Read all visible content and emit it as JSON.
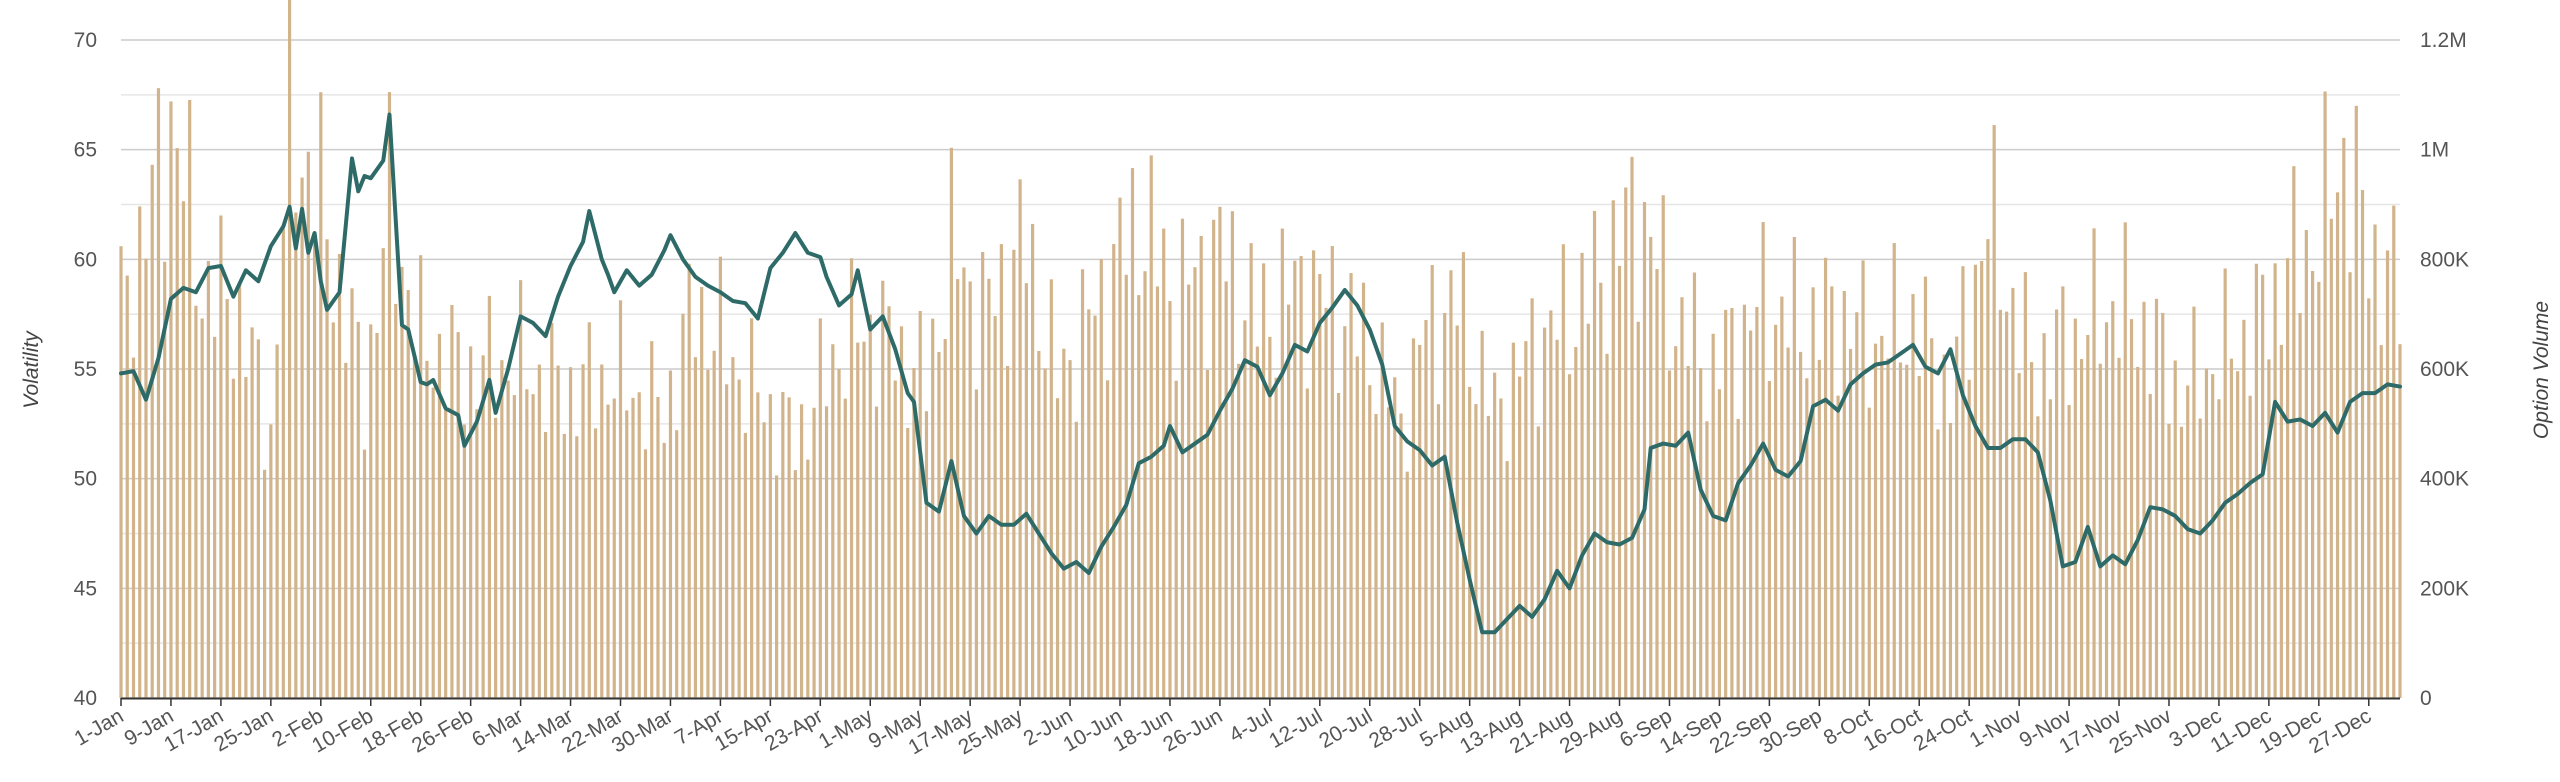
{
  "chart_data": {
    "type": "bar+line",
    "title": "",
    "x_tick_labels": [
      "1-Jan",
      "9-Jan",
      "17-Jan",
      "25-Jan",
      "2-Feb",
      "10-Feb",
      "18-Feb",
      "26-Feb",
      "6-Mar",
      "14-Mar",
      "22-Mar",
      "30-Mar",
      "7-Apr",
      "15-Apr",
      "23-Apr",
      "1-May",
      "9-May",
      "17-May",
      "25-May",
      "2-Jun",
      "10-Jun",
      "18-Jun",
      "26-Jun",
      "4-Jul",
      "12-Jul",
      "20-Jul",
      "28-Jul",
      "5-Aug",
      "13-Aug",
      "21-Aug",
      "29-Aug",
      "6-Sep",
      "14-Sep",
      "22-Sep",
      "30-Sep",
      "8-Oct",
      "16-Oct",
      "24-Oct",
      "1-Nov",
      "9-Nov",
      "17-Nov",
      "25-Nov",
      "3-Dec",
      "11-Dec",
      "19-Dec",
      "27-Dec"
    ],
    "y_left": {
      "label": "Volatility",
      "min": 40,
      "max": 70,
      "ticks": [
        "40",
        "45",
        "50",
        "55",
        "60",
        "65",
        "70"
      ]
    },
    "y_right": {
      "label": "Option Volume",
      "min": 0,
      "max": 1200000,
      "ticks": [
        "0",
        "200K",
        "400K",
        "600K",
        "800K",
        "1M",
        "1.2M"
      ]
    },
    "grid": true,
    "colors": {
      "bars": "#d2b48c",
      "line": "#2e6b68",
      "grid_major": "#cccccc",
      "grid_minor": "#e6e6e6"
    },
    "line_anchors": [
      [
        "2024-01-01",
        54.8
      ],
      [
        "2024-01-03",
        54.9
      ],
      [
        "2024-01-05",
        53.6
      ],
      [
        "2024-01-07",
        55.5
      ],
      [
        "2024-01-09",
        58.2
      ],
      [
        "2024-01-11",
        58.7
      ],
      [
        "2024-01-13",
        58.5
      ],
      [
        "2024-01-15",
        59.6
      ],
      [
        "2024-01-17",
        59.7
      ],
      [
        "2024-01-19",
        58.3
      ],
      [
        "2024-01-21",
        59.5
      ],
      [
        "2024-01-23",
        59.0
      ],
      [
        "2024-01-25",
        60.6
      ],
      [
        "2024-01-27",
        61.5
      ],
      [
        "2024-01-28",
        62.4
      ],
      [
        "2024-01-29",
        60.5
      ],
      [
        "2024-01-30",
        62.3
      ],
      [
        "2024-01-31",
        60.3
      ],
      [
        "2024-02-01",
        61.2
      ],
      [
        "2024-02-02",
        59.0
      ],
      [
        "2024-02-03",
        57.7
      ],
      [
        "2024-02-05",
        58.5
      ],
      [
        "2024-02-07",
        64.6
      ],
      [
        "2024-02-08",
        63.1
      ],
      [
        "2024-02-09",
        63.8
      ],
      [
        "2024-02-10",
        63.7
      ],
      [
        "2024-02-12",
        64.5
      ],
      [
        "2024-02-13",
        66.6
      ],
      [
        "2024-02-15",
        57.0
      ],
      [
        "2024-02-16",
        56.8
      ],
      [
        "2024-02-18",
        54.4
      ],
      [
        "2024-02-19",
        54.3
      ],
      [
        "2024-02-20",
        54.5
      ],
      [
        "2024-02-22",
        53.2
      ],
      [
        "2024-02-24",
        52.9
      ],
      [
        "2024-02-25",
        51.5
      ],
      [
        "2024-02-27",
        52.6
      ],
      [
        "2024-02-29",
        54.5
      ],
      [
        "2024-03-01",
        53.0
      ],
      [
        "2024-03-03",
        55.0
      ],
      [
        "2024-03-05",
        57.4
      ],
      [
        "2024-03-07",
        57.1
      ],
      [
        "2024-03-09",
        56.5
      ],
      [
        "2024-03-11",
        58.3
      ],
      [
        "2024-03-13",
        59.7
      ],
      [
        "2024-03-15",
        60.8
      ],
      [
        "2024-03-16",
        62.2
      ],
      [
        "2024-03-18",
        60.0
      ],
      [
        "2024-03-19",
        59.3
      ],
      [
        "2024-03-20",
        58.5
      ],
      [
        "2024-03-22",
        59.5
      ],
      [
        "2024-03-24",
        58.8
      ],
      [
        "2024-03-26",
        59.3
      ],
      [
        "2024-03-28",
        60.4
      ],
      [
        "2024-03-29",
        61.1
      ],
      [
        "2024-03-31",
        60.0
      ],
      [
        "2024-04-02",
        59.2
      ],
      [
        "2024-04-04",
        58.8
      ],
      [
        "2024-04-06",
        58.5
      ],
      [
        "2024-04-08",
        58.1
      ],
      [
        "2024-04-10",
        58.0
      ],
      [
        "2024-04-12",
        57.3
      ],
      [
        "2024-04-14",
        59.6
      ],
      [
        "2024-04-16",
        60.3
      ],
      [
        "2024-04-18",
        61.2
      ],
      [
        "2024-04-20",
        60.3
      ],
      [
        "2024-04-22",
        60.1
      ],
      [
        "2024-04-23",
        59.2
      ],
      [
        "2024-04-25",
        57.9
      ],
      [
        "2024-04-27",
        58.4
      ],
      [
        "2024-04-28",
        59.5
      ],
      [
        "2024-04-30",
        56.8
      ],
      [
        "2024-05-02",
        57.4
      ],
      [
        "2024-05-04",
        55.9
      ],
      [
        "2024-05-06",
        53.9
      ],
      [
        "2024-05-07",
        53.5
      ],
      [
        "2024-05-09",
        48.9
      ],
      [
        "2024-05-11",
        48.5
      ],
      [
        "2024-05-13",
        50.8
      ],
      [
        "2024-05-15",
        48.3
      ],
      [
        "2024-05-17",
        47.5
      ],
      [
        "2024-05-19",
        48.3
      ],
      [
        "2024-05-21",
        47.9
      ],
      [
        "2024-05-23",
        47.9
      ],
      [
        "2024-05-25",
        48.4
      ],
      [
        "2024-05-27",
        47.5
      ],
      [
        "2024-05-29",
        46.6
      ],
      [
        "2024-05-31",
        45.9
      ],
      [
        "2024-06-02",
        46.2
      ],
      [
        "2024-06-04",
        45.7
      ],
      [
        "2024-06-06",
        46.9
      ],
      [
        "2024-06-08",
        47.8
      ],
      [
        "2024-06-10",
        48.8
      ],
      [
        "2024-06-12",
        50.7
      ],
      [
        "2024-06-14",
        51.0
      ],
      [
        "2024-06-16",
        51.5
      ],
      [
        "2024-06-17",
        52.4
      ],
      [
        "2024-06-19",
        51.2
      ],
      [
        "2024-06-21",
        51.6
      ],
      [
        "2024-06-23",
        52.0
      ],
      [
        "2024-06-25",
        53.1
      ],
      [
        "2024-06-27",
        54.1
      ],
      [
        "2024-06-29",
        55.4
      ],
      [
        "2024-07-01",
        55.1
      ],
      [
        "2024-07-03",
        53.8
      ],
      [
        "2024-07-05",
        54.8
      ],
      [
        "2024-07-07",
        56.1
      ],
      [
        "2024-07-09",
        55.8
      ],
      [
        "2024-07-11",
        57.1
      ],
      [
        "2024-07-13",
        57.8
      ],
      [
        "2024-07-15",
        58.6
      ],
      [
        "2024-07-17",
        57.9
      ],
      [
        "2024-07-19",
        56.8
      ],
      [
        "2024-07-21",
        55.2
      ],
      [
        "2024-07-23",
        52.4
      ],
      [
        "2024-07-25",
        51.7
      ],
      [
        "2024-07-27",
        51.3
      ],
      [
        "2024-07-29",
        50.6
      ],
      [
        "2024-07-31",
        51.0
      ],
      [
        "2024-08-02",
        48.0
      ],
      [
        "2024-08-04",
        45.4
      ],
      [
        "2024-08-06",
        43.0
      ],
      [
        "2024-08-08",
        43.0
      ],
      [
        "2024-08-10",
        43.6
      ],
      [
        "2024-08-12",
        44.2
      ],
      [
        "2024-08-14",
        43.7
      ],
      [
        "2024-08-16",
        44.5
      ],
      [
        "2024-08-18",
        45.8
      ],
      [
        "2024-08-20",
        45.0
      ],
      [
        "2024-08-22",
        46.5
      ],
      [
        "2024-08-24",
        47.5
      ],
      [
        "2024-08-26",
        47.1
      ],
      [
        "2024-08-28",
        47.0
      ],
      [
        "2024-08-30",
        47.3
      ],
      [
        "2024-09-01",
        48.6
      ],
      [
        "2024-09-02",
        51.4
      ],
      [
        "2024-09-04",
        51.6
      ],
      [
        "2024-09-06",
        51.5
      ],
      [
        "2024-09-08",
        52.1
      ],
      [
        "2024-09-10",
        49.5
      ],
      [
        "2024-09-12",
        48.3
      ],
      [
        "2024-09-14",
        48.1
      ],
      [
        "2024-09-16",
        49.8
      ],
      [
        "2024-09-18",
        50.6
      ],
      [
        "2024-09-20",
        51.6
      ],
      [
        "2024-09-22",
        50.4
      ],
      [
        "2024-09-24",
        50.1
      ],
      [
        "2024-09-26",
        50.8
      ],
      [
        "2024-09-28",
        53.3
      ],
      [
        "2024-09-30",
        53.6
      ],
      [
        "2024-10-02",
        53.1
      ],
      [
        "2024-10-04",
        54.3
      ],
      [
        "2024-10-06",
        54.8
      ],
      [
        "2024-10-08",
        55.2
      ],
      [
        "2024-10-10",
        55.3
      ],
      [
        "2024-10-12",
        55.7
      ],
      [
        "2024-10-14",
        56.1
      ],
      [
        "2024-10-16",
        55.1
      ],
      [
        "2024-10-18",
        54.8
      ],
      [
        "2024-10-20",
        55.9
      ],
      [
        "2024-10-22",
        53.8
      ],
      [
        "2024-10-24",
        52.4
      ],
      [
        "2024-10-26",
        51.4
      ],
      [
        "2024-10-28",
        51.4
      ],
      [
        "2024-10-30",
        51.8
      ],
      [
        "2024-11-01",
        51.8
      ],
      [
        "2024-11-03",
        51.2
      ],
      [
        "2024-11-05",
        49.0
      ],
      [
        "2024-11-07",
        46.0
      ],
      [
        "2024-11-09",
        46.2
      ],
      [
        "2024-11-11",
        47.8
      ],
      [
        "2024-11-13",
        46.0
      ],
      [
        "2024-11-15",
        46.5
      ],
      [
        "2024-11-17",
        46.1
      ],
      [
        "2024-11-19",
        47.2
      ],
      [
        "2024-11-21",
        48.7
      ],
      [
        "2024-11-23",
        48.6
      ],
      [
        "2024-11-25",
        48.3
      ],
      [
        "2024-11-27",
        47.7
      ],
      [
        "2024-11-29",
        47.5
      ],
      [
        "2024-12-01",
        48.1
      ],
      [
        "2024-12-03",
        48.9
      ],
      [
        "2024-12-05",
        49.3
      ],
      [
        "2024-12-07",
        49.8
      ],
      [
        "2024-12-09",
        50.2
      ],
      [
        "2024-12-11",
        53.5
      ],
      [
        "2024-12-13",
        52.6
      ],
      [
        "2024-12-15",
        52.7
      ],
      [
        "2024-12-17",
        52.4
      ],
      [
        "2024-12-19",
        53.0
      ],
      [
        "2024-12-21",
        52.1
      ],
      [
        "2024-12-23",
        53.5
      ],
      [
        "2024-12-25",
        53.9
      ],
      [
        "2024-12-27",
        53.9
      ],
      [
        "2024-12-29",
        54.3
      ],
      [
        "2024-12-31",
        54.2
      ]
    ],
    "volume_anchors": [
      [
        "2024-01-01",
        700000
      ],
      [
        "2024-01-07",
        950000
      ],
      [
        "2024-01-09",
        1070000
      ],
      [
        "2024-01-14",
        760000
      ],
      [
        "2024-01-20",
        700000
      ],
      [
        "2024-01-25",
        480000
      ],
      [
        "2024-01-28",
        1070000
      ],
      [
        "2024-02-02",
        900000
      ],
      [
        "2024-02-09",
        560000
      ],
      [
        "2024-02-13",
        900000
      ],
      [
        "2024-02-18",
        650000
      ],
      [
        "2024-02-25",
        600000
      ],
      [
        "2024-03-05",
        610000
      ],
      [
        "2024-03-12",
        560000
      ],
      [
        "2024-03-20",
        590000
      ],
      [
        "2024-03-28",
        520000
      ],
      [
        "2024-04-02",
        720000
      ],
      [
        "2024-04-10",
        580000
      ],
      [
        "2024-04-18",
        470000
      ],
      [
        "2024-04-25",
        640000
      ],
      [
        "2024-05-01",
        680000
      ],
      [
        "2024-05-05",
        620000
      ],
      [
        "2024-05-09",
        580000
      ],
      [
        "2024-05-13",
        820000
      ],
      [
        "2024-05-18",
        700000
      ],
      [
        "2024-05-25",
        830000
      ],
      [
        "2024-05-30",
        580000
      ],
      [
        "2024-06-05",
        710000
      ],
      [
        "2024-06-12",
        880000
      ],
      [
        "2024-06-18",
        730000
      ],
      [
        "2024-06-25",
        820000
      ],
      [
        "2024-07-01",
        690000
      ],
      [
        "2024-07-08",
        760000
      ],
      [
        "2024-07-15",
        700000
      ],
      [
        "2024-07-20",
        620000
      ],
      [
        "2024-07-24",
        500000
      ],
      [
        "2024-07-28",
        680000
      ],
      [
        "2024-08-02",
        720000
      ],
      [
        "2024-08-08",
        520000
      ],
      [
        "2024-08-14",
        640000
      ],
      [
        "2024-08-20",
        700000
      ],
      [
        "2024-08-25",
        770000
      ],
      [
        "2024-08-31",
        900000
      ],
      [
        "2024-09-06",
        690000
      ],
      [
        "2024-09-12",
        600000
      ],
      [
        "2024-09-20",
        720000
      ],
      [
        "2024-09-26",
        680000
      ],
      [
        "2024-10-02",
        700000
      ],
      [
        "2024-10-08",
        650000
      ],
      [
        "2024-10-14",
        690000
      ],
      [
        "2024-10-20",
        560000
      ],
      [
        "2024-10-26",
        880000
      ],
      [
        "2024-11-02",
        600000
      ],
      [
        "2024-11-06",
        640000
      ],
      [
        "2024-11-10",
        670000
      ],
      [
        "2024-11-15",
        720000
      ],
      [
        "2024-11-20",
        680000
      ],
      [
        "2024-11-26",
        560000
      ],
      [
        "2024-12-02",
        620000
      ],
      [
        "2024-12-08",
        680000
      ],
      [
        "2024-12-14",
        800000
      ],
      [
        "2024-12-18",
        850000
      ],
      [
        "2024-12-22",
        1000000
      ],
      [
        "2024-12-26",
        820000
      ],
      [
        "2024-12-31",
        740000
      ]
    ]
  }
}
